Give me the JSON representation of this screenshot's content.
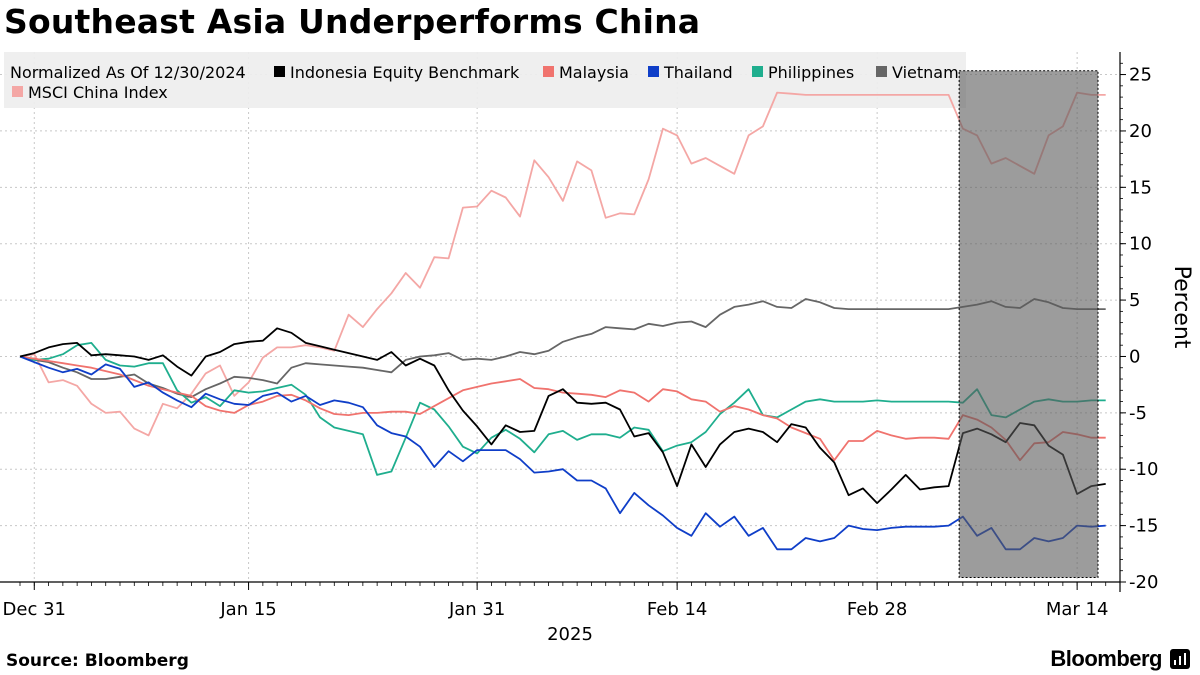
{
  "chart_data": {
    "type": "line",
    "title": "Southeast Asia Underperforms China",
    "legend_title": "Normalized As Of 12/30/2024",
    "ylabel": "Percent",
    "ylim": [
      -20,
      27
    ],
    "yticks": [
      25,
      20,
      15,
      10,
      5,
      0,
      -5,
      -10,
      -15,
      -20
    ],
    "xrange": [
      0,
      75
    ],
    "xticks": [
      {
        "label": "Dec 31",
        "x": 1
      },
      {
        "label": "Jan 15",
        "x": 16
      },
      {
        "label": "Jan 31",
        "x": 32
      },
      {
        "label": "Feb 14",
        "x": 46
      },
      {
        "label": "Feb 28",
        "x": 60
      },
      {
        "label": "Mar 14",
        "x": 74
      }
    ],
    "year_label": "2025",
    "highlight_range": [
      66,
      78
    ],
    "series": [
      {
        "name": "Indonesia Equity Benchmark",
        "color": "#000000",
        "x": [
          0,
          1,
          2,
          3,
          4,
          5,
          6,
          7,
          8,
          9,
          10,
          11,
          12,
          13,
          14,
          15,
          16,
          17,
          18,
          19,
          20,
          21,
          22,
          23,
          24,
          25,
          26,
          27,
          28,
          29,
          30,
          31,
          32,
          33,
          34,
          35,
          36,
          37,
          38,
          39,
          40,
          41,
          42,
          43,
          44,
          45,
          46,
          47,
          48,
          49,
          50,
          51,
          52,
          53,
          54,
          55,
          56,
          57,
          58,
          59,
          60,
          61,
          62,
          63,
          64,
          65,
          66,
          67,
          68,
          69,
          70,
          71,
          72,
          73,
          74,
          75,
          76,
          77
        ],
        "values": [
          0,
          0.3,
          0.8,
          1.1,
          1.2,
          0.1,
          0.2,
          0.1,
          0,
          -0.3,
          0.1,
          -0.9,
          -1.7,
          0,
          0.4,
          1.1,
          1.3,
          1.4,
          2.5,
          2.1,
          1.2,
          0.9,
          0.6,
          0.3,
          0,
          -0.3,
          0.4,
          -0.8,
          -0.2,
          -0.8,
          -3,
          -4.8,
          -6.2,
          -7.8,
          -6.1,
          -6.7,
          -6.6,
          -3.5,
          -2.9,
          -4.1,
          -4.2,
          -4.1,
          -4.7,
          -7.1,
          -6.8,
          -8.5,
          -11.5,
          -7.8,
          -9.8,
          -7.8,
          -6.7,
          -6.4,
          -6.7,
          -7.6,
          -6,
          -6.3,
          -8.1,
          -9.4,
          -12.3,
          -11.7,
          -13,
          -11.8,
          -10.5,
          -11.8,
          -11.6,
          -11.5,
          -6.8,
          -6.4,
          -6.9,
          -7.6,
          -5.9,
          -6.1,
          -7.9,
          -8.7,
          -12.2,
          -11.5,
          -11.3,
          -11.2
        ]
      },
      {
        "name": "Malaysia",
        "color": "#f0736e",
        "x": [
          0,
          1,
          2,
          3,
          4,
          5,
          6,
          7,
          8,
          9,
          10,
          11,
          12,
          13,
          14,
          15,
          16,
          17,
          18,
          19,
          20,
          21,
          22,
          23,
          24,
          25,
          26,
          27,
          28,
          29,
          30,
          31,
          32,
          33,
          34,
          35,
          36,
          37,
          38,
          39,
          40,
          41,
          42,
          43,
          44,
          45,
          46,
          47,
          48,
          49,
          50,
          51,
          52,
          53,
          54,
          55,
          56,
          57,
          58,
          59,
          60,
          61,
          62,
          63,
          64,
          65,
          66,
          67,
          68,
          69,
          70,
          71,
          72,
          73,
          74,
          75,
          76,
          77
        ],
        "values": [
          0,
          -0.2,
          -0.4,
          -0.6,
          -0.8,
          -1,
          -1.3,
          -1.6,
          -2.1,
          -2.6,
          -2.9,
          -3.2,
          -3.5,
          -4.4,
          -4.8,
          -5,
          -4.3,
          -4,
          -3.5,
          -3.4,
          -3.9,
          -4.6,
          -5.1,
          -5.2,
          -5,
          -5,
          -4.9,
          -4.9,
          -5.1,
          -4.4,
          -3.7,
          -3,
          -2.7,
          -2.4,
          -2.2,
          -2,
          -2.8,
          -2.9,
          -3.2,
          -3.3,
          -3.4,
          -3.6,
          -3,
          -3.2,
          -4,
          -2.9,
          -3.1,
          -3.8,
          -4,
          -4.9,
          -4.4,
          -4.7,
          -5.2,
          -5.5,
          -6.3,
          -6.8,
          -7.3,
          -9.2,
          -7.5,
          -7.5,
          -6.6,
          -7,
          -7.3,
          -7.2,
          -7.2,
          -7.3,
          -5.2,
          -5.6,
          -6.3,
          -7.4,
          -9.2,
          -7.7,
          -7.6,
          -6.7,
          -6.9,
          -7.2,
          -7.2,
          -7.3
        ]
      },
      {
        "name": "Thailand",
        "color": "#0f3ec8",
        "x": [
          0,
          1,
          2,
          3,
          4,
          5,
          6,
          7,
          8,
          9,
          10,
          11,
          12,
          13,
          14,
          15,
          16,
          17,
          18,
          19,
          20,
          21,
          22,
          23,
          24,
          25,
          26,
          27,
          28,
          29,
          30,
          31,
          32,
          33,
          34,
          35,
          36,
          37,
          38,
          39,
          40,
          41,
          42,
          43,
          44,
          45,
          46,
          47,
          48,
          49,
          50,
          51,
          52,
          53,
          54,
          55,
          56,
          57,
          58,
          59,
          60,
          61,
          62,
          63,
          64,
          65,
          66,
          67,
          68,
          69,
          70,
          71,
          72,
          73,
          74,
          75,
          76,
          77
        ],
        "values": [
          0,
          -0.5,
          -1,
          -1.4,
          -1.1,
          -1.6,
          -0.7,
          -1.1,
          -2.7,
          -2.3,
          -3.2,
          -3.9,
          -4.5,
          -3.3,
          -3.8,
          -4.2,
          -4.3,
          -3.5,
          -3.2,
          -4,
          -3.5,
          -4.3,
          -3.9,
          -4.1,
          -4.5,
          -6.1,
          -6.8,
          -7.1,
          -8,
          -9.8,
          -8.4,
          -9.3,
          -8.3,
          -8.3,
          -8.3,
          -9.1,
          -10.3,
          -10.2,
          -10,
          -11,
          -11,
          -11.7,
          -13.9,
          -12.1,
          -13.2,
          -14.1,
          -15.2,
          -15.9,
          -13.9,
          -15.1,
          -14.2,
          -15.9,
          -15.2,
          -17.1,
          -17.1,
          -16.1,
          -16.4,
          -16.1,
          -15,
          -15.3,
          -15.4,
          -15.2,
          -15.1,
          -15.1,
          -15.1,
          -15,
          -14.2,
          -15.9,
          -15.2,
          -17.1,
          -17.1,
          -16.1,
          -16.4,
          -16.1,
          -15,
          -15.1,
          -15,
          -15
        ]
      },
      {
        "name": "Philippines",
        "color": "#1fae8e",
        "x": [
          0,
          1,
          2,
          3,
          4,
          5,
          6,
          7,
          8,
          9,
          10,
          11,
          12,
          13,
          14,
          15,
          16,
          17,
          18,
          19,
          20,
          21,
          22,
          23,
          24,
          25,
          26,
          27,
          28,
          29,
          30,
          31,
          32,
          33,
          34,
          35,
          36,
          37,
          38,
          39,
          40,
          41,
          42,
          43,
          44,
          45,
          46,
          47,
          48,
          49,
          50,
          51,
          52,
          53,
          54,
          55,
          56,
          57,
          58,
          59,
          60,
          61,
          62,
          63,
          64,
          65,
          66,
          67,
          68,
          69,
          70,
          71,
          72,
          73,
          74,
          75,
          76,
          77
        ],
        "values": [
          0,
          -0.3,
          -0.2,
          0.2,
          1,
          1.2,
          -0.3,
          -0.8,
          -0.9,
          -0.6,
          -0.6,
          -3,
          -4.1,
          -3.6,
          -4.4,
          -3,
          -3.2,
          -3.1,
          -2.8,
          -2.5,
          -3.4,
          -5.4,
          -6.3,
          -6.6,
          -6.9,
          -10.5,
          -10.2,
          -7.2,
          -4.1,
          -4.7,
          -6.2,
          -8,
          -8.6,
          -7.2,
          -6.5,
          -7.3,
          -8.5,
          -6.9,
          -6.6,
          -7.4,
          -6.9,
          -6.9,
          -7.2,
          -6.3,
          -6.5,
          -8.4,
          -7.9,
          -7.6,
          -6.7,
          -5.1,
          -4.1,
          -2.9,
          -5.2,
          -5.4,
          -4.7,
          -4,
          -3.8,
          -4,
          -4,
          -4,
          -3.9,
          -4,
          -4,
          -4,
          -4,
          -4,
          -4.1,
          -2.9,
          -5.2,
          -5.4,
          -4.7,
          -4,
          -3.8,
          -4,
          -4,
          -3.9,
          -3.9,
          -3.9
        ]
      },
      {
        "name": "Vietnam",
        "color": "#666666",
        "x": [
          0,
          1,
          2,
          3,
          4,
          5,
          6,
          7,
          8,
          9,
          10,
          11,
          12,
          13,
          14,
          15,
          16,
          17,
          18,
          19,
          20,
          21,
          22,
          23,
          24,
          25,
          26,
          27,
          28,
          29,
          30,
          31,
          32,
          33,
          34,
          35,
          36,
          37,
          38,
          39,
          40,
          41,
          42,
          43,
          44,
          45,
          46,
          47,
          48,
          49,
          50,
          51,
          52,
          53,
          54,
          55,
          56,
          57,
          58,
          59,
          60,
          61,
          62,
          63,
          64,
          65,
          66,
          67,
          68,
          69,
          70,
          71,
          72,
          73,
          74,
          75,
          76,
          77
        ],
        "values": [
          0,
          -0.3,
          -0.5,
          -1,
          -1.4,
          -2,
          -2,
          -1.8,
          -1.6,
          -2.4,
          -2.8,
          -3.3,
          -3.6,
          -2.9,
          -2.4,
          -1.8,
          -1.9,
          -2.1,
          -2.4,
          -1,
          -0.6,
          -0.7,
          -0.8,
          -0.9,
          -1,
          -1.2,
          -1.4,
          -0.3,
          0,
          0.1,
          0.3,
          -0.3,
          -0.2,
          -0.3,
          0,
          0.4,
          0.2,
          0.5,
          1.3,
          1.7,
          2,
          2.6,
          2.5,
          2.4,
          2.9,
          2.7,
          3,
          3.1,
          2.6,
          3.7,
          4.4,
          4.6,
          4.9,
          4.4,
          4.3,
          5.1,
          4.8,
          4.3,
          4.2,
          4.2,
          4.2,
          4.2,
          4.2,
          4.2,
          4.2,
          4.2,
          4.4,
          4.6,
          4.9,
          4.4,
          4.3,
          5.1,
          4.8,
          4.3,
          4.2,
          4.2,
          4.2,
          4.2
        ]
      },
      {
        "name": "MSCI China Index",
        "color": "#f4a7a5",
        "x": [
          0,
          1,
          2,
          3,
          4,
          5,
          6,
          7,
          8,
          9,
          10,
          11,
          12,
          13,
          14,
          15,
          16,
          17,
          18,
          19,
          20,
          21,
          22,
          23,
          24,
          25,
          26,
          27,
          28,
          29,
          30,
          31,
          32,
          33,
          34,
          35,
          36,
          37,
          38,
          39,
          40,
          41,
          42,
          43,
          44,
          45,
          46,
          47,
          48,
          49,
          50,
          51,
          52,
          53,
          54,
          55,
          56,
          57,
          58,
          59,
          60,
          61,
          62,
          63,
          64,
          65,
          66,
          67,
          68,
          69,
          70,
          71,
          72,
          73,
          74,
          75,
          76,
          77
        ],
        "values": [
          0,
          0.2,
          -2.3,
          -2.1,
          -2.6,
          -4.2,
          -5,
          -4.9,
          -6.4,
          -7,
          -4.2,
          -4.6,
          -3.3,
          -1.5,
          -0.8,
          -3.5,
          -2.3,
          -0.1,
          0.8,
          0.8,
          1,
          0.8,
          0.5,
          3.7,
          2.6,
          4.2,
          5.6,
          7.4,
          6.1,
          8.8,
          8.7,
          13.2,
          13.3,
          14.7,
          14.1,
          12.4,
          17.4,
          15.9,
          13.8,
          17.3,
          16.5,
          12.3,
          12.7,
          12.6,
          15.7,
          20.2,
          19.6,
          17.1,
          17.6,
          16.9,
          16.2,
          19.6,
          20.4,
          23.4,
          23.3,
          23.2,
          23.2,
          23.2,
          23.2,
          23.2,
          23.2,
          23.2,
          23.2,
          23.2,
          23.2,
          23.2,
          20.2,
          19.6,
          17.1,
          17.6,
          16.9,
          16.2,
          19.6,
          20.4,
          23.4,
          23.2,
          23.2,
          23.2
        ]
      }
    ]
  },
  "footer": {
    "source_label": "Source:",
    "source_value": "Bloomberg",
    "brand": "Bloomberg"
  }
}
